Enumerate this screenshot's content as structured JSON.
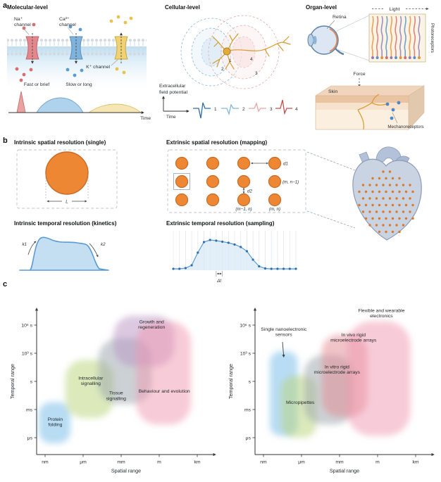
{
  "palette": {
    "electrode_orange": "#ED8733",
    "trace_blue": "#5B9BD5",
    "membrane_gray": "#D3DAE1",
    "na_red": "#E2888C",
    "ca_blue": "#7FB3DC",
    "k_yellow": "#F0D173"
  },
  "panel_a": {
    "label": "a",
    "molecular": {
      "title": "Molecular-level",
      "na_1": "Na⁺",
      "na_2": "channel",
      "ca_1": "Ca²⁺",
      "ca_2": "channel",
      "k_label": "K⁺ channel",
      "fast": "Fast or brief",
      "slow": "Slow or long",
      "time": "Time"
    },
    "cellular": {
      "title": "Cellular-level",
      "field_1": "Extracellular",
      "field_2": "field potential",
      "time": "Time",
      "markers": [
        "1",
        "2",
        "3",
        "4"
      ],
      "trace_labels": [
        "1",
        "2",
        "3",
        "4"
      ]
    },
    "organ": {
      "title": "Organ-level",
      "retina": "Retina",
      "light": "Light",
      "photoreceptors": "Photoreceptors",
      "force": "Force",
      "skin": "Skin",
      "mechanoreceptors": "Mechanoreceptors"
    }
  },
  "panel_b": {
    "label": "b",
    "intrinsic_spatial_title": "Intrinsic spatial resolution (single)",
    "L": "L",
    "extrinsic_spatial_title": "Extrinsic spatial resolution (mapping)",
    "d1": "d1",
    "d2": "d2",
    "grid_labels": {
      "m_n_minus1": "(m, n−1)",
      "m_minus1_n": "(m−1, n)",
      "m_n": "(m, n)"
    },
    "intrinsic_temporal_title": "Intrinsic temporal resolution (kinetics)",
    "k1": "k1",
    "k2": "k2",
    "extrinsic_temporal_title": "Extrinsic temporal resolution (sampling)",
    "dt": "Δt"
  },
  "panel_c": {
    "label": "c"
  },
  "chart_data": {
    "type": "area",
    "description": "Log-log maps of temporal range versus spatial range; soft shaded regions",
    "x_axis": {
      "label": "Spatial range",
      "ticks": [
        "nm",
        "μm",
        "mm",
        "m",
        "km"
      ],
      "tick_log10_m": [
        -9,
        -6,
        -3,
        0,
        3
      ]
    },
    "y_axis": {
      "label": "Temporal range",
      "ticks": [
        "μs",
        "ms",
        "s",
        "10³ s",
        "10⁶ s"
      ],
      "tick_log10_s": [
        -6,
        -3,
        0,
        3,
        6
      ]
    },
    "charts": [
      {
        "name": "biological processes",
        "regions": [
          {
            "name": "Protein folding",
            "label_lines": [
              "Protein",
              "folding"
            ],
            "color": "#6fb9e8",
            "x_log10_m": [
              -9.5,
              -7.0
            ],
            "y_log10_s": [
              -6.6,
              -2.2
            ],
            "label_log": [
              -8.2,
              -4.2
            ]
          },
          {
            "name": "Intracellular signalling",
            "label_lines": [
              "Intracellular",
              "signalling"
            ],
            "color": "#b8d478",
            "x_log10_m": [
              -7.4,
              -3.6
            ],
            "y_log10_s": [
              -3.9,
              2.3
            ],
            "label_log": [
              -5.4,
              0.2
            ]
          },
          {
            "name": "Tissue signalling",
            "label_lines": [
              "Tissue",
              "signalling"
            ],
            "color": "#9aa4ac",
            "x_log10_m": [
              -4.8,
              -0.6
            ],
            "y_log10_s": [
              -2.4,
              4.6
            ],
            "label_log": [
              -3.4,
              -1.4
            ]
          },
          {
            "name": "Growth and regeneration",
            "label_lines": [
              "Growth and",
              "regeneration"
            ],
            "color": "#ba93c4",
            "x_log10_m": [
              -3.6,
              1.2
            ],
            "y_log10_s": [
              1.6,
              7.0
            ],
            "label_log": [
              -0.6,
              6.2
            ]
          },
          {
            "name": "Behaviour and evolution",
            "label_lines": [
              "Behaviour and evolution"
            ],
            "color": "#f097b1",
            "x_log10_m": [
              -1.8,
              2.5
            ],
            "y_log10_s": [
              -4.6,
              6.4
            ],
            "label_log": [
              0.4,
              -1.2
            ]
          }
        ]
      },
      {
        "name": "sensing technologies",
        "regions": [
          {
            "name": "Single nanoelectronic sensors",
            "label_lines": [
              "Single nanoelectronic",
              "sensors"
            ],
            "color": "#6fb9e8",
            "x_log10_m": [
              -8.5,
              -6.3
            ],
            "y_log10_s": [
              -5.8,
              3.2
            ],
            "label_log": [
              -7.4,
              5.4
            ],
            "arrow": {
              "from_log": [
                -7.5,
                4.2
              ],
              "to_log": [
                -7.4,
                2.6
              ]
            }
          },
          {
            "name": "Micropipettes",
            "label_lines": [
              "Micropipettes"
            ],
            "color": "#b8d478",
            "x_log10_m": [
              -7.6,
              -4.8
            ],
            "y_log10_s": [
              -6.0,
              0.6
            ],
            "label_log": [
              -6.1,
              -2.4
            ]
          },
          {
            "name": "In vitro rigid microelectrode arrays",
            "label_lines": [
              "In vitro rigid",
              "microelectrode arrays"
            ],
            "color": "#9aa4ac",
            "x_log10_m": [
              -5.8,
              -1.9
            ],
            "y_log10_s": [
              -4.6,
              2.8
            ],
            "label_log": [
              -3.2,
              1.4
            ]
          },
          {
            "name": "In vivo rigid microelectrode arrays",
            "label_lines": [
              "In vivo rigid",
              "microelectrode arrays"
            ],
            "color": "#e38a92",
            "x_log10_m": [
              -4.4,
              -0.8
            ],
            "y_log10_s": [
              -3.8,
              5.0
            ],
            "label_log": [
              -1.9,
              4.8
            ]
          },
          {
            "name": "Flexible and wearable electronics",
            "label_lines": [
              "Flexible and wearable",
              "electronics"
            ],
            "color": "#f097b1",
            "x_log10_m": [
              -2.4,
              2.6
            ],
            "y_log10_s": [
              -5.8,
              6.4
            ],
            "label_log": [
              0.3,
              7.4
            ]
          }
        ]
      }
    ]
  }
}
